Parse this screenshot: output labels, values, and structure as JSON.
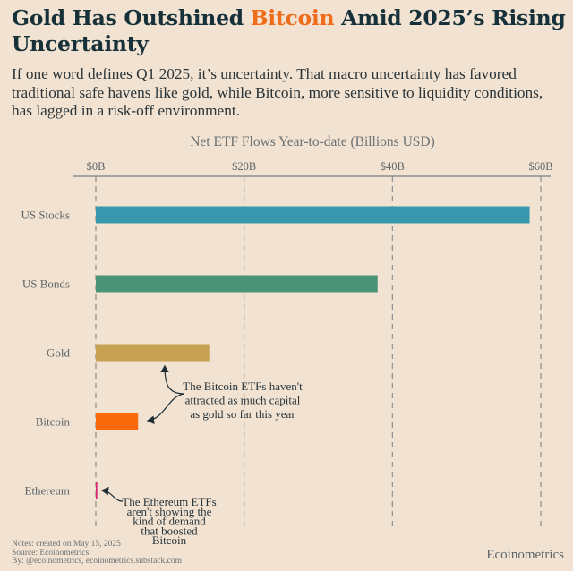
{
  "header": {
    "title_part1": "Gold Has Outshined ",
    "title_highlight": "Bitcoin",
    "title_part2": " Amid 2025’s Rising Uncertainty",
    "highlight_color": "#ef6c1a",
    "subtitle": "If one word defines Q1 2025, it’s uncertainty. That macro uncertainty has favored traditional safe havens like gold, while Bitcoin, more sensitive to liquidity conditions, has lagged in a risk-off environment."
  },
  "chart_data": {
    "type": "bar",
    "orientation": "horizontal",
    "title": "Net ETF Flows Year-to-date (Billions USD)",
    "xlabel": "Net ETF Flows Year-to-date (Billions USD)",
    "ylabel": "",
    "categories": [
      "US Stocks",
      "US Bonds",
      "Gold",
      "Bitcoin",
      "Ethereum"
    ],
    "values": [
      58.5,
      38.0,
      15.3,
      5.7,
      0.2
    ],
    "unit": "Billions USD",
    "colors": [
      "#3a98ae",
      "#4a9378",
      "#c8a253",
      "#fa6a0a",
      "#d6246e"
    ],
    "xlim": [
      0,
      60
    ],
    "xticks": [
      0,
      20,
      40,
      60
    ],
    "xtick_labels": [
      "$0B",
      "$20B",
      "$40B",
      "$60B"
    ],
    "grid": "vertical dashed",
    "axis_position": "top",
    "annotations": [
      {
        "text_lines": [
          "The Bitcoin ETFs haven't",
          "attracted as much capital",
          "as gold so far this year"
        ],
        "points_to": [
          "Gold",
          "Bitcoin"
        ]
      },
      {
        "text_lines": [
          "The Ethereum ETFs",
          "aren't showing the",
          "kind of demand",
          "that boosted",
          "Bitcoin"
        ],
        "points_to": [
          "Ethereum"
        ]
      }
    ]
  },
  "footer": {
    "notes": "Notes: created on May 15, 2025",
    "source": "Source: Ecoinometrics",
    "by": "By: @ecoinometrics, ecoinometrics.substack.com",
    "brand": "Ecoinometrics"
  }
}
